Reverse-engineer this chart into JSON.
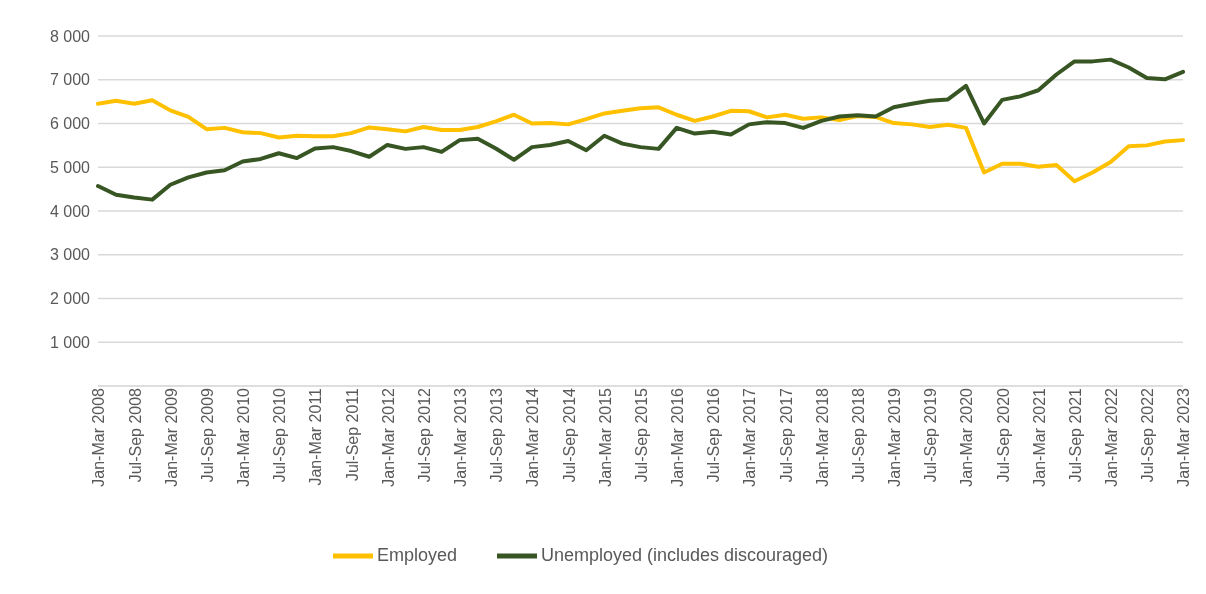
{
  "chart_data": {
    "type": "line",
    "categories": [
      "Jan-Mar 2008",
      null,
      "Jul-Sep 2008",
      null,
      "Jan-Mar 2009",
      null,
      "Jul-Sep 2009",
      null,
      "Jan-Mar 2010",
      null,
      "Jul-Sep 2010",
      null,
      "Jan-Mar 2011",
      null,
      "Jul-Sep 2011",
      null,
      "Jan-Mar 2012",
      null,
      "Jul-Sep 2012",
      null,
      "Jan-Mar 2013",
      null,
      "Jul-Sep 2013",
      null,
      "Jan-Mar 2014",
      null,
      "Jul-Sep 2014",
      null,
      "Jan-Mar 2015",
      null,
      "Jul-Sep 2015",
      null,
      "Jan-Mar 2016",
      null,
      "Jul-Sep 2016",
      null,
      "Jan-Mar 2017",
      null,
      "Jul-Sep 2017",
      null,
      "Jan-Mar 2018",
      null,
      "Jul-Sep 2018",
      null,
      "Jan-Mar 2019",
      null,
      "Jul-Sep 2019",
      null,
      "Jan-Mar 2020",
      null,
      "Jul-Sep 2020",
      null,
      "Jan-Mar 2021",
      null,
      "Jul-Sep 2021",
      null,
      "Jan-Mar 2022",
      null,
      "Jul-Sep 2022",
      null,
      "Jan-Mar 2023"
    ],
    "series": [
      {
        "name": "Employed",
        "color": "#ffc000",
        "values": [
          6450,
          6520,
          6450,
          6530,
          6300,
          6150,
          5870,
          5900,
          5800,
          5780,
          5680,
          5720,
          5710,
          5710,
          5780,
          5910,
          5870,
          5820,
          5920,
          5850,
          5850,
          5920,
          6050,
          6200,
          6000,
          6010,
          5980,
          6100,
          6230,
          6290,
          6350,
          6370,
          6200,
          6060,
          6160,
          6290,
          6280,
          6140,
          6200,
          6110,
          6140,
          6080,
          6170,
          6150,
          6010,
          5980,
          5920,
          5970,
          5900,
          4880,
          5080,
          5080,
          5010,
          5050,
          4680,
          4880,
          5120,
          5480,
          5500,
          5590,
          5620
        ]
      },
      {
        "name": "Unemployed (includes discouraged)",
        "color": "#375623",
        "values": [
          4570,
          4370,
          4310,
          4260,
          4600,
          4770,
          4880,
          4930,
          5130,
          5190,
          5320,
          5210,
          5430,
          5460,
          5370,
          5240,
          5510,
          5420,
          5460,
          5350,
          5620,
          5650,
          5430,
          5170,
          5460,
          5510,
          5600,
          5390,
          5720,
          5540,
          5460,
          5420,
          5900,
          5770,
          5810,
          5750,
          5980,
          6030,
          6010,
          5900,
          6060,
          6160,
          6190,
          6160,
          6370,
          6450,
          6520,
          6550,
          6860,
          6000,
          6540,
          6620,
          6760,
          7120,
          7420,
          7420,
          7460,
          7280,
          7040,
          7010,
          7180
        ]
      }
    ],
    "ylim": [
      0,
      8000
    ],
    "yticks": [
      {
        "value": 1000,
        "label": "1 000"
      },
      {
        "value": 2000,
        "label": "2 000"
      },
      {
        "value": 3000,
        "label": "3 000"
      },
      {
        "value": 4000,
        "label": "4 000"
      },
      {
        "value": 5000,
        "label": "5 000"
      },
      {
        "value": 6000,
        "label": "6 000"
      },
      {
        "value": 7000,
        "label": "7 000"
      },
      {
        "value": 8000,
        "label": "8 000"
      }
    ],
    "grid": "y",
    "legend": "bottom",
    "marker": "none",
    "line_style": "solid"
  }
}
